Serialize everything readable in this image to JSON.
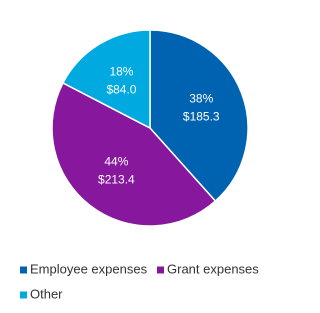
{
  "chart_data": {
    "type": "pie",
    "categories": [
      "Employee expenses",
      "Grant expenses",
      "Other"
    ],
    "values": [
      185.3,
      213.4,
      84.0
    ],
    "value_labels": [
      "$185.3",
      "$213.4",
      "$84.0"
    ],
    "percentages": [
      38,
      44,
      18
    ],
    "percentage_labels": [
      "38%",
      "44%",
      "18%"
    ],
    "colors": [
      "#0063b1",
      "#87189d",
      "#00a9e0"
    ]
  }
}
